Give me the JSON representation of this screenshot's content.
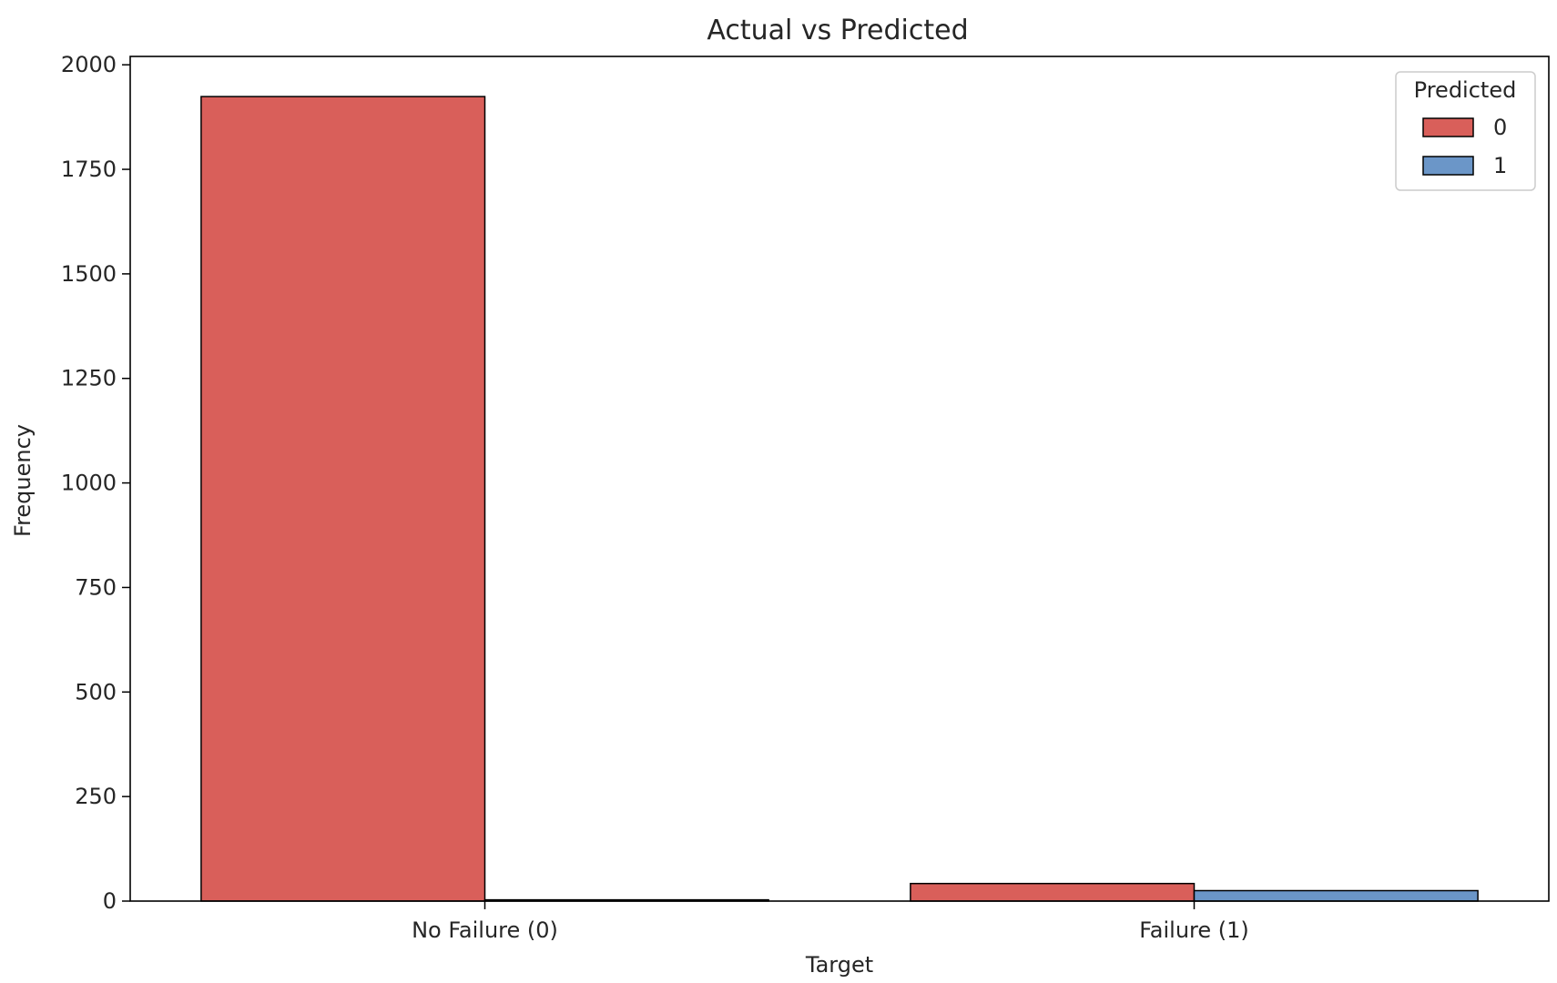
{
  "chart_data": {
    "type": "bar",
    "title": "Actual vs Predicted",
    "xlabel": "Target",
    "ylabel": "Frequency",
    "categories": [
      "No Failure (0)",
      "Failure (1)"
    ],
    "series": [
      {
        "name": "0",
        "color": "#d95f5a",
        "values": [
          1924,
          42
        ]
      },
      {
        "name": "1",
        "color": "#6b96c8",
        "values": [
          3,
          25
        ]
      }
    ],
    "ylim": [
      0,
      2020
    ],
    "yticks": [
      0,
      250,
      500,
      750,
      1000,
      1250,
      1500,
      1750,
      2000
    ],
    "legend": {
      "title": "Predicted",
      "position": "top-right"
    },
    "grid": false
  }
}
